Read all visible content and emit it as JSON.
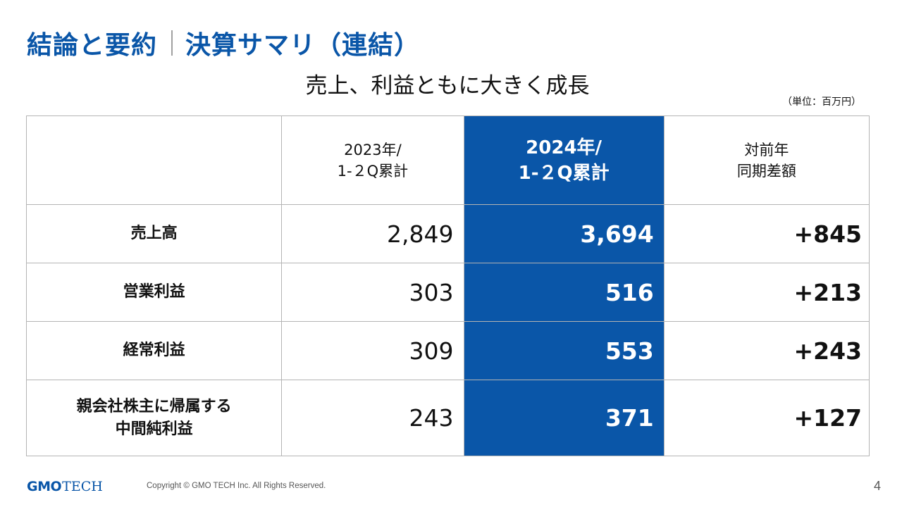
{
  "header": {
    "title_main": "結論と要約",
    "title_section": "決算サマリ（連結）",
    "subtitle": "売上、利益ともに大きく成長",
    "unit": "（単位：百万円）"
  },
  "table": {
    "columns": [
      {
        "line1": "",
        "line2": ""
      },
      {
        "line1": "2023年/",
        "line2": "1-２Q累計"
      },
      {
        "line1": "2024年/",
        "line2": "1-２Q累計"
      },
      {
        "line1": "対前年",
        "line2": "同期差額"
      }
    ],
    "rows": [
      {
        "label_line1": "売上高",
        "label_line2": "",
        "prev": "2,849",
        "curr": "3,694",
        "diff": "+845"
      },
      {
        "label_line1": "営業利益",
        "label_line2": "",
        "prev": "303",
        "curr": "516",
        "diff": "+213"
      },
      {
        "label_line1": "経常利益",
        "label_line2": "",
        "prev": "309",
        "curr": "553",
        "diff": "+243"
      },
      {
        "label_line1": "親会社株主に帰属する",
        "label_line2": "中間純利益",
        "prev": "243",
        "curr": "371",
        "diff": "+127"
      }
    ]
  },
  "footer": {
    "logo_gmo": "GMO",
    "logo_tech": "TECH",
    "copyright": "Copyright © GMO TECH Inc. All Rights Reserved.",
    "page_number": "4"
  },
  "colors": {
    "brand_blue": "#0a56a8",
    "border_gray": "#b4b4b4"
  }
}
